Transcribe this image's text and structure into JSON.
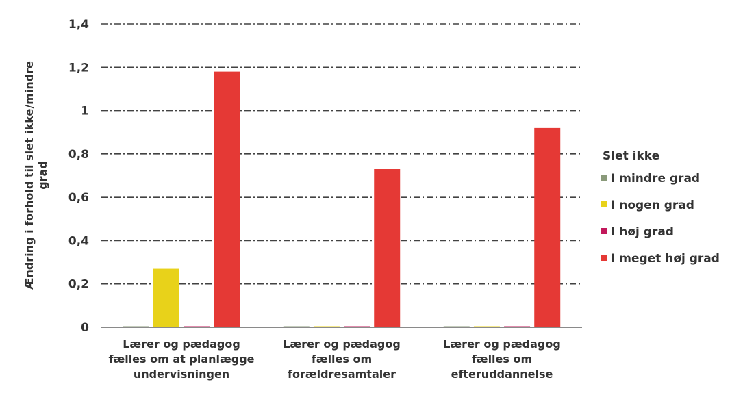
{
  "chart_data": {
    "type": "bar",
    "title": "",
    "xlabel": "",
    "ylabel_lines": [
      "Ændring i forhold til slet ikke/mindre",
      "grad"
    ],
    "ylim": [
      0,
      1.4
    ],
    "y_ticks": [
      "0",
      "0,2",
      "0,4",
      "0,6",
      "0,8",
      "1",
      "1,2",
      "1,4"
    ],
    "categories": [
      [
        "Lærer og pædagog",
        "fælles om at planlægge",
        "undervisningen"
      ],
      [
        "Lærer og pædagog",
        "fælles om",
        "forældresamtaler"
      ],
      [
        "Lærer og pædagog",
        "fælles om",
        "efteruddannelse"
      ]
    ],
    "legend_title": "Slet ikke",
    "legend_position": "right",
    "grid": true,
    "series": [
      {
        "name": "I mindre grad",
        "color": "#8a9a7a",
        "values": [
          0,
          0,
          0
        ]
      },
      {
        "name": "I nogen grad",
        "color": "#e8d21a",
        "values": [
          0.27,
          0,
          0
        ]
      },
      {
        "name": "I høj grad",
        "color": "#c2185b",
        "values": [
          0,
          0,
          0
        ]
      },
      {
        "name": "I meget høj grad",
        "color": "#e53935",
        "values": [
          1.18,
          0.73,
          0.92
        ]
      }
    ]
  }
}
